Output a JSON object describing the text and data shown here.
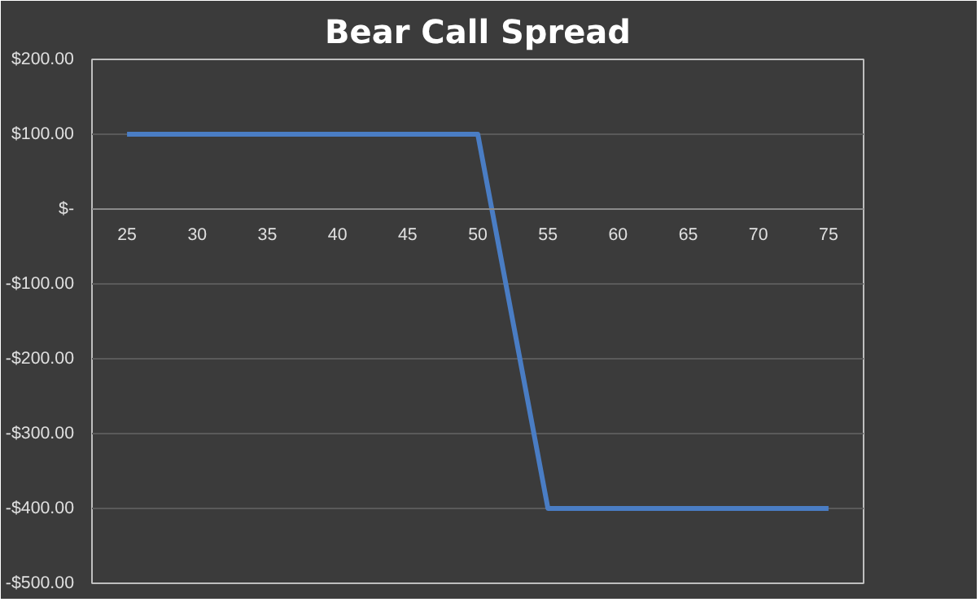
{
  "chart_data": {
    "type": "line",
    "title": "Bear Call Spread",
    "categories": [
      "25",
      "30",
      "35",
      "40",
      "45",
      "50",
      "55",
      "60",
      "65",
      "70",
      "75"
    ],
    "series": [
      {
        "color": "#4a7dc4",
        "values": [
          100,
          100,
          100,
          100,
          100,
          100,
          -400,
          -400,
          -400,
          -400,
          -400
        ]
      }
    ],
    "ylim": [
      -500,
      200
    ],
    "yticks": [
      {
        "value": 200,
        "label": "$200.00"
      },
      {
        "value": 100,
        "label": "$100.00"
      },
      {
        "value": 0,
        "label": "$-"
      },
      {
        "value": -100,
        "label": "-$100.00"
      },
      {
        "value": -200,
        "label": "-$200.00"
      },
      {
        "value": -300,
        "label": "-$300.00"
      },
      {
        "value": -400,
        "label": "-$400.00"
      },
      {
        "value": -500,
        "label": "-$500.00"
      }
    ],
    "grid": "y",
    "marker": "none",
    "line_style": "solid"
  }
}
